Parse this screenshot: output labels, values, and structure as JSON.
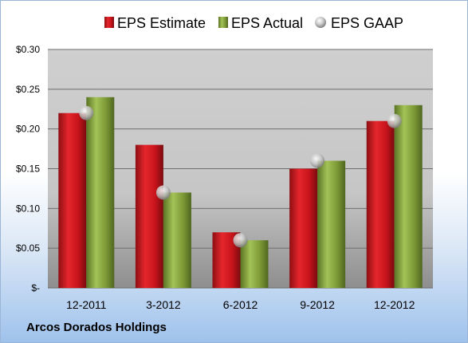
{
  "company": "Arcos Dorados Holdings",
  "chart_data": {
    "type": "bar",
    "categories": [
      "12-2011",
      "3-2012",
      "6-2012",
      "9-2012",
      "12-2012"
    ],
    "series": [
      {
        "name": "EPS Estimate",
        "type": "bar",
        "values": [
          0.22,
          0.18,
          0.07,
          0.15,
          0.21
        ],
        "color": "#c8141c"
      },
      {
        "name": "EPS Actual",
        "type": "bar",
        "values": [
          0.24,
          0.12,
          0.06,
          0.16,
          0.23
        ],
        "color": "#7d9a36"
      },
      {
        "name": "EPS GAAP",
        "type": "scatter",
        "values": [
          0.22,
          0.12,
          0.06,
          0.16,
          0.21
        ],
        "color": "#c0c0c0"
      }
    ],
    "yticks": [
      {
        "value": 0.0,
        "label": "$-"
      },
      {
        "value": 0.05,
        "label": "$0.05"
      },
      {
        "value": 0.1,
        "label": "$0.10"
      },
      {
        "value": 0.15,
        "label": "$0.15"
      },
      {
        "value": 0.2,
        "label": "$0.20"
      },
      {
        "value": 0.25,
        "label": "$0.25"
      },
      {
        "value": 0.3,
        "label": "$0.30"
      }
    ],
    "ylim": [
      0,
      0.3
    ],
    "grid": true,
    "legend_position": "top"
  }
}
